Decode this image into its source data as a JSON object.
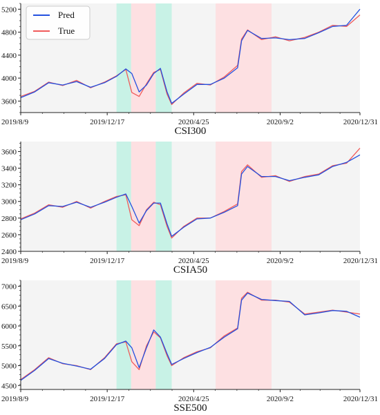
{
  "figure": {
    "legend": [
      {
        "label": "Pred",
        "color": "#2250e0"
      },
      {
        "label": "True",
        "color": "#f05a5a"
      }
    ],
    "legend_placement": "top-left",
    "colors": {
      "background_band": "#f4f4f4",
      "green_band": "#c8f2e6",
      "red_band": "#fde0e2"
    }
  },
  "chart_data": [
    {
      "type": "line",
      "title": "CSI300",
      "x_ticks": [
        "2019/8/9",
        "2019/12/17",
        "2020/4/25",
        "2020/9/2",
        "2020/12/31"
      ],
      "y_ticks": [
        3600,
        4000,
        4400,
        4800,
        5200
      ],
      "ylim": [
        3400,
        5300
      ],
      "grid": false,
      "shaded_bands": [
        {
          "from": "2019/12/31",
          "to": "2020/1/22",
          "color": "green"
        },
        {
          "from": "2020/1/22",
          "to": "2020/2/28",
          "color": "red"
        },
        {
          "from": "2020/2/28",
          "to": "2020/3/23",
          "color": "green"
        },
        {
          "from": "2020/5/28",
          "to": "2020/8/20",
          "color": "red"
        }
      ],
      "series": [
        {
          "name": "True",
          "color": "#f05a5a",
          "x": [
            "2019/8/9",
            "2019/8/30",
            "2019/9/20",
            "2019/10/11",
            "2019/11/1",
            "2019/11/22",
            "2019/12/13",
            "2019/12/31",
            "2020/1/14",
            "2020/1/23",
            "2020/2/3",
            "2020/2/14",
            "2020/2/25",
            "2020/3/6",
            "2020/3/16",
            "2020/3/23",
            "2020/4/10",
            "2020/4/30",
            "2020/5/20",
            "2020/6/10",
            "2020/6/30",
            "2020/7/6",
            "2020/7/15",
            "2020/8/5",
            "2020/8/26",
            "2020/9/16",
            "2020/10/9",
            "2020/10/30",
            "2020/11/20",
            "2020/12/11",
            "2020/12/31"
          ],
          "y": [
            3680,
            3770,
            3930,
            3870,
            3960,
            3830,
            3930,
            4040,
            4150,
            3750,
            3680,
            3900,
            4100,
            4150,
            3720,
            3540,
            3740,
            3910,
            3880,
            4020,
            4220,
            4680,
            4840,
            4670,
            4720,
            4650,
            4710,
            4800,
            4920,
            4900,
            5100
          ]
        },
        {
          "name": "Pred",
          "color": "#2250e0",
          "x": [
            "2019/8/9",
            "2019/8/30",
            "2019/9/20",
            "2019/10/11",
            "2019/11/1",
            "2019/11/22",
            "2019/12/13",
            "2019/12/31",
            "2020/1/14",
            "2020/1/23",
            "2020/2/3",
            "2020/2/14",
            "2020/2/25",
            "2020/3/6",
            "2020/3/16",
            "2020/3/23",
            "2020/4/10",
            "2020/4/30",
            "2020/5/20",
            "2020/6/10",
            "2020/6/30",
            "2020/7/6",
            "2020/7/15",
            "2020/8/5",
            "2020/8/26",
            "2020/9/16",
            "2020/10/9",
            "2020/10/30",
            "2020/11/20",
            "2020/12/11",
            "2020/12/31"
          ],
          "y": [
            3660,
            3760,
            3920,
            3880,
            3940,
            3840,
            3920,
            4030,
            4160,
            4080,
            3760,
            3880,
            4080,
            4170,
            3760,
            3560,
            3720,
            3890,
            3890,
            4000,
            4180,
            4650,
            4830,
            4690,
            4700,
            4670,
            4690,
            4790,
            4900,
            4920,
            5200
          ]
        }
      ]
    },
    {
      "type": "line",
      "title": "CSIA50",
      "x_ticks": [
        "2019/8/9",
        "2019/12/17",
        "2020/4/25",
        "2020/9/2",
        "2020/12/31"
      ],
      "y_ticks": [
        2400,
        2600,
        2800,
        3000,
        3200,
        3400,
        3600
      ],
      "ylim": [
        2400,
        3720
      ],
      "grid": false,
      "shaded_bands": [
        {
          "from": "2019/12/31",
          "to": "2020/1/22",
          "color": "green"
        },
        {
          "from": "2020/1/22",
          "to": "2020/2/28",
          "color": "red"
        },
        {
          "from": "2020/2/28",
          "to": "2020/3/23",
          "color": "green"
        },
        {
          "from": "2020/5/28",
          "to": "2020/8/20",
          "color": "red"
        }
      ],
      "series": [
        {
          "name": "True",
          "color": "#f05a5a",
          "x": [
            "2019/8/9",
            "2019/8/30",
            "2019/9/20",
            "2019/10/11",
            "2019/11/1",
            "2019/11/22",
            "2019/12/13",
            "2019/12/31",
            "2020/1/14",
            "2020/1/23",
            "2020/2/3",
            "2020/2/14",
            "2020/2/25",
            "2020/3/6",
            "2020/3/16",
            "2020/3/23",
            "2020/4/10",
            "2020/4/30",
            "2020/5/20",
            "2020/6/10",
            "2020/6/30",
            "2020/7/6",
            "2020/7/15",
            "2020/8/5",
            "2020/8/26",
            "2020/9/16",
            "2020/10/9",
            "2020/10/30",
            "2020/11/20",
            "2020/12/11",
            "2020/12/31"
          ],
          "y": [
            2790,
            2860,
            2960,
            2930,
            3000,
            2920,
            3000,
            3060,
            3080,
            2780,
            2710,
            2900,
            2990,
            2960,
            2700,
            2560,
            2700,
            2800,
            2800,
            2880,
            2970,
            3360,
            3440,
            3290,
            3310,
            3240,
            3300,
            3330,
            3430,
            3460,
            3640
          ]
        },
        {
          "name": "Pred",
          "color": "#2250e0",
          "x": [
            "2019/8/9",
            "2019/8/30",
            "2019/9/20",
            "2019/10/11",
            "2019/11/1",
            "2019/11/22",
            "2019/12/13",
            "2019/12/31",
            "2020/1/14",
            "2020/1/23",
            "2020/2/3",
            "2020/2/14",
            "2020/2/25",
            "2020/3/6",
            "2020/3/16",
            "2020/3/23",
            "2020/4/10",
            "2020/4/30",
            "2020/5/20",
            "2020/6/10",
            "2020/6/30",
            "2020/7/6",
            "2020/7/15",
            "2020/8/5",
            "2020/8/26",
            "2020/9/16",
            "2020/10/9",
            "2020/10/30",
            "2020/11/20",
            "2020/12/11",
            "2020/12/31"
          ],
          "y": [
            2780,
            2850,
            2950,
            2940,
            2990,
            2930,
            2990,
            3050,
            3090,
            2940,
            2740,
            2890,
            2980,
            2980,
            2730,
            2580,
            2690,
            2790,
            2800,
            2870,
            2950,
            3330,
            3420,
            3300,
            3300,
            3250,
            3290,
            3320,
            3420,
            3470,
            3560
          ]
        }
      ]
    },
    {
      "type": "line",
      "title": "SSE500",
      "x_ticks": [
        "2019/8/9",
        "2019/12/17",
        "2020/4/25",
        "2020/9/2",
        "2020/12/31"
      ],
      "y_ticks": [
        4500,
        5000,
        5500,
        6000,
        6500,
        7000
      ],
      "ylim": [
        4400,
        7150
      ],
      "grid": false,
      "shaded_bands": [
        {
          "from": "2019/12/31",
          "to": "2020/1/22",
          "color": "green"
        },
        {
          "from": "2020/1/22",
          "to": "2020/2/28",
          "color": "red"
        },
        {
          "from": "2020/2/28",
          "to": "2020/3/23",
          "color": "green"
        },
        {
          "from": "2020/5/28",
          "to": "2020/8/20",
          "color": "red"
        }
      ],
      "series": [
        {
          "name": "True",
          "color": "#f05a5a",
          "x": [
            "2019/8/9",
            "2019/8/30",
            "2019/9/20",
            "2019/10/11",
            "2019/11/1",
            "2019/11/22",
            "2019/12/13",
            "2019/12/31",
            "2020/1/14",
            "2020/1/23",
            "2020/2/3",
            "2020/2/14",
            "2020/2/25",
            "2020/3/6",
            "2020/3/16",
            "2020/3/23",
            "2020/4/10",
            "2020/4/30",
            "2020/5/20",
            "2020/6/10",
            "2020/6/30",
            "2020/7/6",
            "2020/7/15",
            "2020/8/5",
            "2020/8/26",
            "2020/9/16",
            "2020/10/9",
            "2020/10/30",
            "2020/11/20",
            "2020/12/11",
            "2020/12/31"
          ],
          "y": [
            4650,
            4900,
            5200,
            5050,
            5000,
            4900,
            5200,
            5550,
            5600,
            5100,
            4900,
            5500,
            5850,
            5700,
            5250,
            5000,
            5200,
            5350,
            5450,
            5750,
            5950,
            6700,
            6850,
            6650,
            6650,
            6600,
            6300,
            6350,
            6400,
            6350,
            6300
          ]
        },
        {
          "name": "Pred",
          "color": "#2250e0",
          "x": [
            "2019/8/9",
            "2019/8/30",
            "2019/9/20",
            "2019/10/11",
            "2019/11/1",
            "2019/11/22",
            "2019/12/13",
            "2019/12/31",
            "2020/1/14",
            "2020/1/23",
            "2020/2/3",
            "2020/2/14",
            "2020/2/25",
            "2020/3/6",
            "2020/3/16",
            "2020/3/23",
            "2020/4/10",
            "2020/4/30",
            "2020/5/20",
            "2020/6/10",
            "2020/6/30",
            "2020/7/6",
            "2020/7/15",
            "2020/8/5",
            "2020/8/26",
            "2020/9/16",
            "2020/10/9",
            "2020/10/30",
            "2020/11/20",
            "2020/12/11",
            "2020/12/31"
          ],
          "y": [
            4630,
            4880,
            5180,
            5060,
            4990,
            4910,
            5180,
            5530,
            5620,
            5450,
            4950,
            5450,
            5900,
            5720,
            5300,
            5030,
            5180,
            5330,
            5460,
            5720,
            5930,
            6650,
            6830,
            6670,
            6640,
            6620,
            6280,
            6330,
            6390,
            6370,
            6220
          ]
        }
      ]
    }
  ]
}
